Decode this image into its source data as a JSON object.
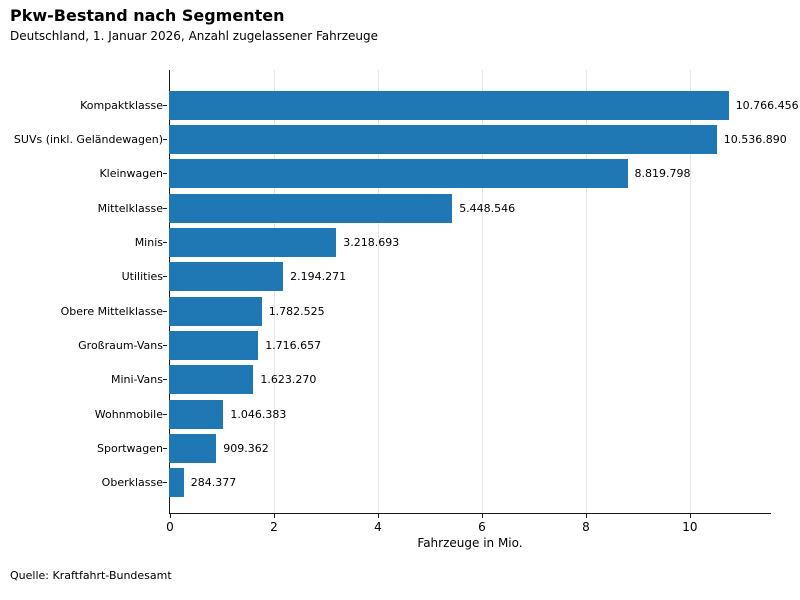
{
  "header": {
    "title": "Pkw-Bestand nach Segmenten",
    "subtitle": "Deutschland, 1. Januar 2026, Anzahl zugelassener Fahrzeuge"
  },
  "chart_data": {
    "type": "bar",
    "orientation": "horizontal",
    "title": "Pkw-Bestand nach Segmenten",
    "subtitle": "Deutschland, 1. Januar 2026, Anzahl zugelassener Fahrzeuge",
    "categories": [
      "Kompaktklasse",
      "SUVs (inkl. Geländewagen)",
      "Kleinwagen",
      "Mittelklasse",
      "Minis",
      "Utilities",
      "Obere Mittelklasse",
      "Großraum-Vans",
      "Mini-Vans",
      "Wohnmobile",
      "Sportwagen",
      "Oberklasse"
    ],
    "values": [
      10766456,
      10536890,
      8819798,
      5448546,
      3218693,
      2194271,
      1782525,
      1716657,
      1623270,
      1046383,
      909362,
      284377
    ],
    "value_labels": [
      "10.766.456",
      "10.536.890",
      "8.819.798",
      "5.448.546",
      "3.218.693",
      "2.194.271",
      "1.782.525",
      "1.716.657",
      "1.623.270",
      "1.046.383",
      "909.362",
      "284.377"
    ],
    "xlabel": "Fahrzeuge in Mio.",
    "ylabel": "",
    "x_ticks": [
      0,
      2,
      4,
      6,
      8,
      10
    ],
    "xlim": [
      0,
      11.58
    ],
    "grid": "vertical",
    "legend": "none",
    "bar_color": "#1f77b4",
    "grid_color": "#e6e6e6"
  },
  "footer": {
    "source": "Quelle: Kraftfahrt-Bundesamt"
  }
}
